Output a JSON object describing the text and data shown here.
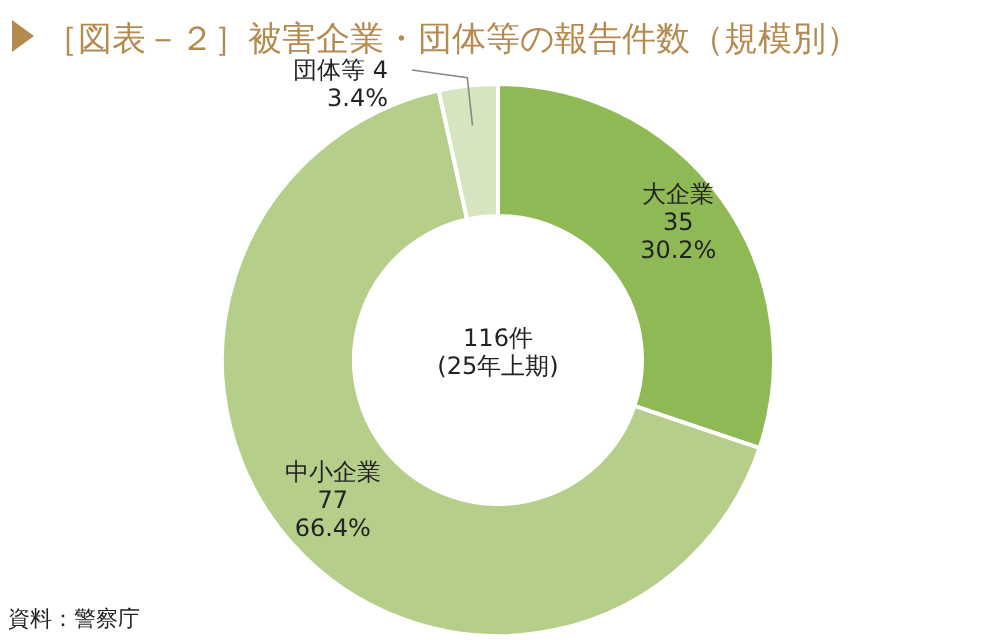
{
  "chart_data": {
    "type": "donut",
    "title": "［図表－２］被害企業・団体等の報告件数（規模別）",
    "categories": [
      "大企業",
      "中小企業",
      "団体等"
    ],
    "values": [
      35,
      77,
      4
    ],
    "value_labels": [
      "35\n30.2%",
      "77\n66.4%",
      "4\n3.4%"
    ],
    "colors": [
      "#8fb955",
      "#b5cf8a",
      "#d6e4bf"
    ],
    "annotations": [
      "116件\n(25年上期)",
      "資料：警察庁"
    ]
  }
}
